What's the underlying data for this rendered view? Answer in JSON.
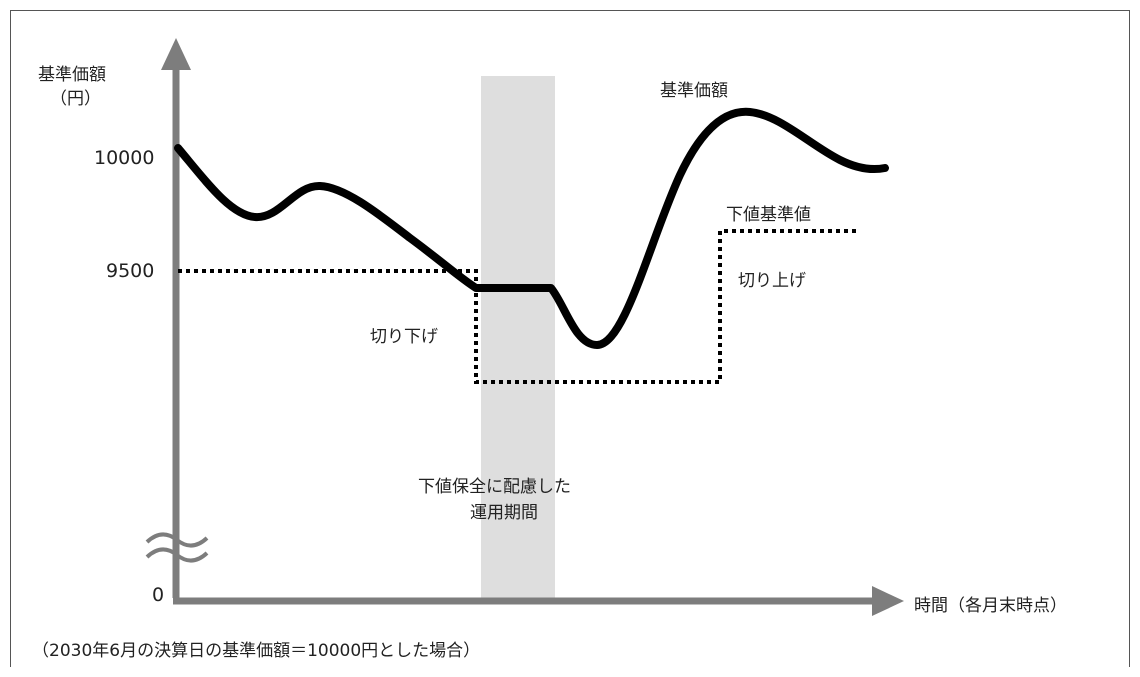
{
  "diagram": {
    "y_axis_title_line1": "基準価額",
    "y_axis_title_line2": "（円）",
    "x_axis_title": "時間（各月末時点）",
    "tick_10000": "10000",
    "tick_9500": "9500",
    "tick_0": "0",
    "label_nav": "基準価額",
    "label_floor": "下値基準値",
    "label_step_up": "切り上げ",
    "label_step_down": "切り下げ",
    "label_period_line1": "下値保全に配慮した",
    "label_period_line2": "運用期間",
    "footnote": "（2030年6月の決算日の基準価額＝10000円とした場合）",
    "colors": {
      "axis": "#7d7d7d",
      "curve": "#000000",
      "floor_line": "#000000",
      "shaded_period": "#dedede"
    }
  }
}
